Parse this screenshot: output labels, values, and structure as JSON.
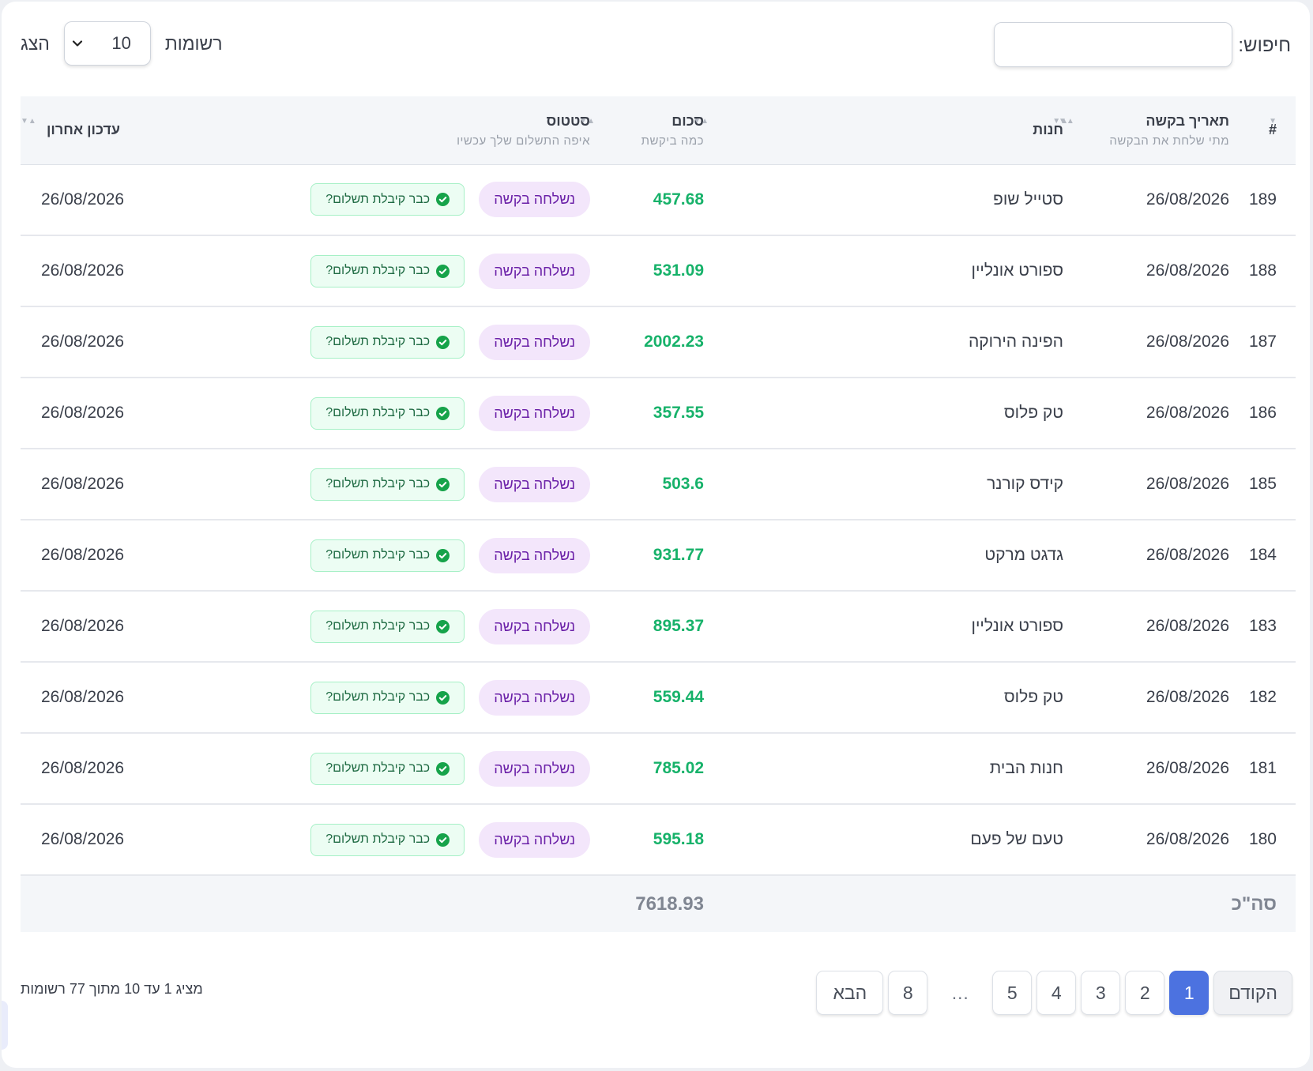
{
  "search": {
    "label": "חיפוש:",
    "value": "",
    "placeholder": ""
  },
  "length_menu": {
    "show_label": "הצג",
    "selected": "10",
    "records_label": "רשומות"
  },
  "columns": {
    "id": {
      "label": "#"
    },
    "request_date": {
      "label": "תאריך בקשה",
      "sub": "מתי שלחת את הבקשה"
    },
    "store": {
      "label": "חנות"
    },
    "amount": {
      "label": "סכום",
      "sub": "כמה ביקשת"
    },
    "status": {
      "label": "סטטוס",
      "sub": "איפה התשלום שלך עכשיו"
    },
    "updated": {
      "label": "עדכון אחרון"
    }
  },
  "rows": [
    {
      "id": "189",
      "date": "26/08/2026",
      "store": "סטייל שופ",
      "amount": "457.68",
      "status": "נשלחה בקשה",
      "action": "כבר קיבלת תשלום?",
      "updated": "26/08/2026"
    },
    {
      "id": "188",
      "date": "26/08/2026",
      "store": "ספורט אונליין",
      "amount": "531.09",
      "status": "נשלחה בקשה",
      "action": "כבר קיבלת תשלום?",
      "updated": "26/08/2026"
    },
    {
      "id": "187",
      "date": "26/08/2026",
      "store": "הפינה הירוקה",
      "amount": "2002.23",
      "status": "נשלחה בקשה",
      "action": "כבר קיבלת תשלום?",
      "updated": "26/08/2026"
    },
    {
      "id": "186",
      "date": "26/08/2026",
      "store": "טק פלוס",
      "amount": "357.55",
      "status": "נשלחה בקשה",
      "action": "כבר קיבלת תשלום?",
      "updated": "26/08/2026"
    },
    {
      "id": "185",
      "date": "26/08/2026",
      "store": "קידס קורנר",
      "amount": "503.6",
      "status": "נשלחה בקשה",
      "action": "כבר קיבלת תשלום?",
      "updated": "26/08/2026"
    },
    {
      "id": "184",
      "date": "26/08/2026",
      "store": "גדגט מרקט",
      "amount": "931.77",
      "status": "נשלחה בקשה",
      "action": "כבר קיבלת תשלום?",
      "updated": "26/08/2026"
    },
    {
      "id": "183",
      "date": "26/08/2026",
      "store": "ספורט אונליין",
      "amount": "895.37",
      "status": "נשלחה בקשה",
      "action": "כבר קיבלת תשלום?",
      "updated": "26/08/2026"
    },
    {
      "id": "182",
      "date": "26/08/2026",
      "store": "טק פלוס",
      "amount": "559.44",
      "status": "נשלחה בקשה",
      "action": "כבר קיבלת תשלום?",
      "updated": "26/08/2026"
    },
    {
      "id": "181",
      "date": "26/08/2026",
      "store": "חנות הבית",
      "amount": "785.02",
      "status": "נשלחה בקשה",
      "action": "כבר קיבלת תשלום?",
      "updated": "26/08/2026"
    },
    {
      "id": "180",
      "date": "26/08/2026",
      "store": "טעם של פעם",
      "amount": "595.18",
      "status": "נשלחה בקשה",
      "action": "כבר קיבלת תשלום?",
      "updated": "26/08/2026"
    }
  ],
  "total": {
    "label": "סה\"כ",
    "value": "7618.93"
  },
  "info": "מציג 1 עד 10 מתוך 77 רשומות",
  "pagination": {
    "previous": "הקודם",
    "next": "הבא",
    "pages": [
      "1",
      "2",
      "3",
      "4",
      "5"
    ],
    "ellipsis": "…",
    "last": "8",
    "active": "1"
  },
  "colors": {
    "accent": "#4c72e0",
    "amount": "#17b26a",
    "status_pill_bg": "#f3e6fb",
    "status_pill_text": "#6b21a8",
    "paid_button_bg": "#ecfdf3",
    "paid_icon": "#16a34a"
  },
  "icons": {
    "select": "chevron-down-icon",
    "sort": "sort-icon",
    "paid": "check-circle-icon"
  }
}
